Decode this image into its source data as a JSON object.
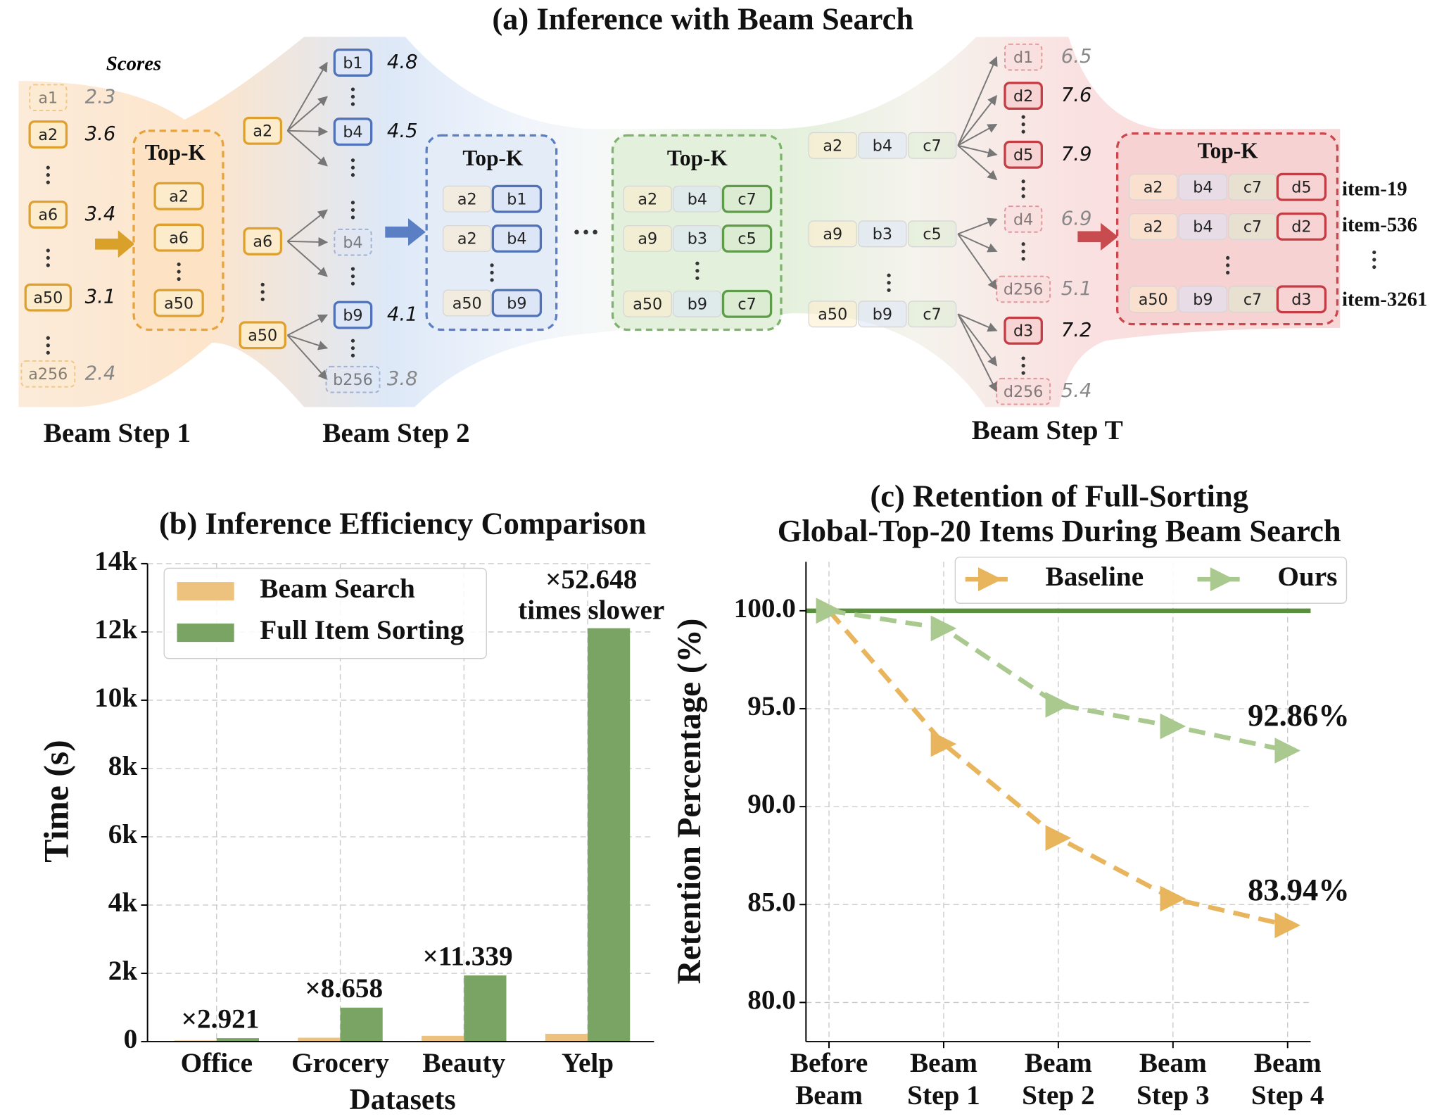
{
  "diagram": {
    "title": "(a) Inference with Beam Search",
    "scores_label": "Scores",
    "topk_label": "Top-K",
    "step_labels": [
      "Beam Step 1",
      "Beam Step 2",
      "Beam Step T"
    ],
    "step1": {
      "candidates": [
        {
          "token": "a1",
          "score": 2.3
        },
        {
          "token": "a2",
          "score": 3.6
        },
        {
          "token": "a6",
          "score": 3.4
        },
        {
          "token": "a50",
          "score": 3.1
        },
        {
          "token": "a256",
          "score": 2.4
        }
      ],
      "topk": [
        "a2",
        "a6",
        "a50"
      ]
    },
    "step2": {
      "parents": [
        "a2",
        "a6",
        "a50"
      ],
      "candidates": [
        {
          "token": "b1",
          "score": 4.8
        },
        {
          "token": "b4",
          "score": 4.5
        },
        {
          "token": "b4"
        },
        {
          "token": "b9",
          "score": 4.1
        },
        {
          "token": "b256",
          "score": 3.8
        }
      ],
      "topk": [
        [
          "a2",
          "b1"
        ],
        [
          "a2",
          "b4"
        ],
        [
          "a50",
          "b9"
        ]
      ]
    },
    "step3": {
      "topk": [
        [
          "a2",
          "b4",
          "c7"
        ],
        [
          "a9",
          "b3",
          "c5"
        ],
        [
          "a50",
          "b9",
          "c7"
        ]
      ]
    },
    "stepT": {
      "parents": [
        [
          "a2",
          "b4",
          "c7"
        ],
        [
          "a9",
          "b3",
          "c5"
        ],
        [
          "a50",
          "b9",
          "c7"
        ]
      ],
      "candidates": [
        {
          "token": "d1",
          "score": 6.5
        },
        {
          "token": "d2",
          "score": 7.6
        },
        {
          "token": "d5",
          "score": 7.9
        },
        {
          "token": "d4",
          "score": 6.9
        },
        {
          "token": "d256",
          "score": 5.1
        },
        {
          "token": "d3",
          "score": 7.2
        },
        {
          "token": "d256",
          "score": 5.4
        }
      ],
      "topk": [
        [
          "a2",
          "b4",
          "c7",
          "d5"
        ],
        [
          "a2",
          "b4",
          "c7",
          "d2"
        ],
        [
          "a50",
          "b9",
          "c7",
          "d3"
        ]
      ],
      "items": [
        "item-19",
        "item-536",
        "item-3261"
      ]
    }
  },
  "chart_data": [
    {
      "type": "bar",
      "title": "(b) Inference Efficiency Comparison",
      "x_label": "Datasets",
      "y_label": "Time (s)",
      "categories": [
        "Office",
        "Grocery",
        "Beauty",
        "Yelp"
      ],
      "series": [
        {
          "name": "Beam Search",
          "color": "#edc27e",
          "values": [
            35,
            115,
            171,
            230
          ]
        },
        {
          "name": "Full Item Sorting",
          "color": "#79a464",
          "values": [
            102,
            996,
            1939,
            12109
          ]
        }
      ],
      "annotations": [
        "×2.921",
        "×8.658",
        "×11.339",
        "×52.648"
      ],
      "annotation_note": "times slower",
      "ylim": [
        0,
        14000
      ],
      "yticks": [
        0,
        {
          "value": 2000,
          "label": "2k"
        },
        {
          "value": 4000,
          "label": "4k"
        },
        {
          "value": 6000,
          "label": "6k"
        },
        {
          "value": 8000,
          "label": "8k"
        },
        {
          "value": 10000,
          "label": "10k"
        },
        {
          "value": 12000,
          "label": "12k"
        },
        {
          "value": 14000,
          "label": "14k"
        }
      ],
      "grid": true,
      "legend": "upper left"
    },
    {
      "type": "line",
      "title": [
        "(c) Retention of Full-Sorting",
        "Global-Top-20 Items During Beam Search"
      ],
      "y_label": "Retention Percentage (%)",
      "categories": [
        [
          "Before",
          "Beam"
        ],
        [
          "Beam",
          "Step 1"
        ],
        [
          "Beam",
          "Step 2"
        ],
        [
          "Beam",
          "Step 3"
        ],
        [
          "Beam",
          "Step 4"
        ]
      ],
      "series": [
        {
          "name": "Baseline",
          "color": "#e8b45c",
          "values": [
            100,
            93.2,
            88.4,
            85.3,
            83.94
          ],
          "value_labels": [
            null,
            null,
            null,
            null,
            "83.94%"
          ]
        },
        {
          "name": "Ours",
          "color": "#a9c98f",
          "values": [
            100,
            99.1,
            95.2,
            94.1,
            92.86
          ],
          "value_labels": [
            null,
            null,
            null,
            null,
            "92.86%"
          ]
        }
      ],
      "reference_line": {
        "value": 100,
        "color": "#5a8f3e"
      },
      "ylim": [
        78,
        102.5
      ],
      "yticks": [
        {
          "value": 80,
          "label": "80.0"
        },
        {
          "value": 85,
          "label": "85.0"
        },
        {
          "value": 90,
          "label": "90.0"
        },
        {
          "value": 95,
          "label": "95.0"
        },
        {
          "value": 100,
          "label": "100.0"
        }
      ],
      "grid": true,
      "legend": "upper right"
    }
  ]
}
